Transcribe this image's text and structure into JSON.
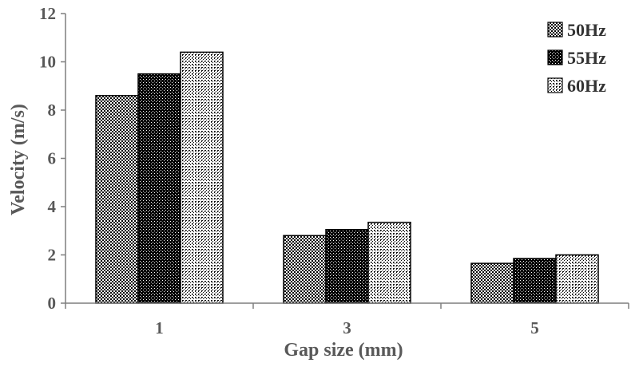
{
  "chart_data": {
    "type": "bar",
    "categories": [
      "1",
      "3",
      "5"
    ],
    "series": [
      {
        "name": "50Hz",
        "values": [
          8.6,
          2.8,
          1.65
        ],
        "pattern": "checker"
      },
      {
        "name": "55Hz",
        "values": [
          9.5,
          3.05,
          1.85
        ],
        "pattern": "dots-dark"
      },
      {
        "name": "60Hz",
        "values": [
          10.4,
          3.35,
          2.0
        ],
        "pattern": "dots-light"
      }
    ],
    "xlabel": "Gap size (mm)",
    "ylabel": "Velocity (m/s)",
    "ylim": [
      0,
      12
    ],
    "yticks": [
      "0",
      "2",
      "4",
      "6",
      "8",
      "10",
      "12"
    ],
    "grid": false,
    "legend_position": "top-right"
  },
  "colors": {
    "axis": "#7f7f7f",
    "text": "#595959",
    "bar_border": "#000000"
  }
}
